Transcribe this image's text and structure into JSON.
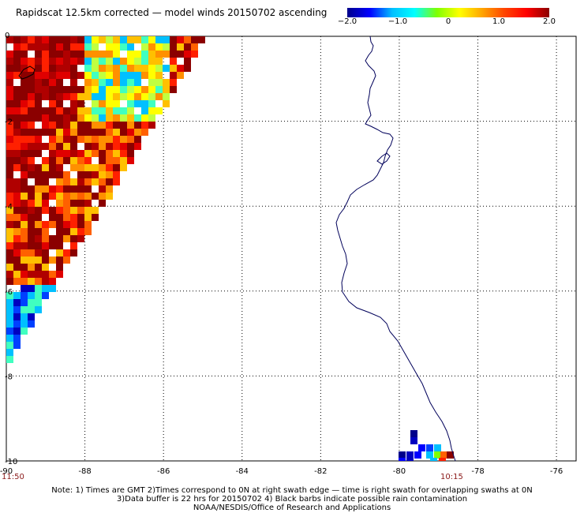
{
  "title": "Rapidscat 12.5km corrected — model winds 20150702 ascending",
  "colorbar": {
    "min": -2.0,
    "max": 2.0,
    "ticks": [
      {
        "value": -2.0,
        "label": "−2.0"
      },
      {
        "value": -1.0,
        "label": "−1.0"
      },
      {
        "value": 0,
        "label": "0"
      },
      {
        "value": 1.0,
        "label": "1.0"
      },
      {
        "value": 2.0,
        "label": "2.0"
      }
    ],
    "colors": [
      "#00008b",
      "#0000ff",
      "#00bfff",
      "#00ffff",
      "#7fff00",
      "#ffff00",
      "#ffa500",
      "#ff4500",
      "#ff0000",
      "#8b0000"
    ]
  },
  "map": {
    "lon_range": [
      -90,
      -75.5
    ],
    "lat_range": [
      -10,
      0
    ],
    "x_ticks": [
      {
        "value": -90,
        "label": "-90"
      },
      {
        "value": -88,
        "label": "-88"
      },
      {
        "value": -86,
        "label": "-86"
      },
      {
        "value": -84,
        "label": "-84"
      },
      {
        "value": -82,
        "label": "-82"
      },
      {
        "value": -80,
        "label": "-80"
      },
      {
        "value": -78,
        "label": "-78"
      },
      {
        "value": -76,
        "label": "-76"
      }
    ],
    "y_ticks": [
      {
        "value": 0,
        "label": "0"
      },
      {
        "value": -2,
        "label": "-2"
      },
      {
        "value": -4,
        "label": "-4"
      },
      {
        "value": -6,
        "label": "-6"
      },
      {
        "value": -8,
        "label": "-8"
      },
      {
        "value": -10,
        "label": "-10"
      }
    ],
    "grid": "dotted",
    "coastline_color": "#00005a"
  },
  "swath_times": {
    "left": "11:50",
    "right": "10:15"
  },
  "notes": {
    "line1": "Note: 1) Times are GMT 2)Times correspond to 0N at right swath edge — time is right swath for overlapping swaths at 0N",
    "line2": "3)Data buffer is 22 hrs for 20150702 4) Black barbs indicate possible rain contamination",
    "line3": "NOAA/NESDIS/Office of Research and Applications"
  }
}
